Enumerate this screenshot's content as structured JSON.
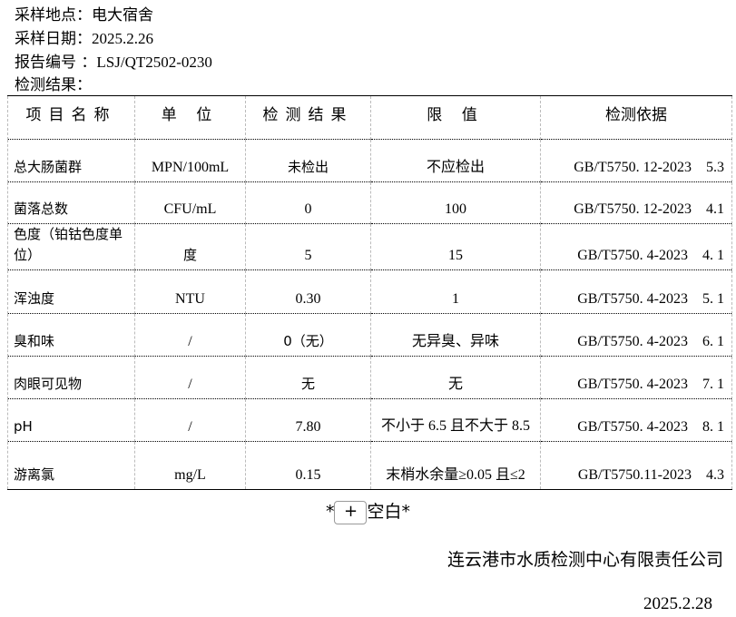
{
  "meta": {
    "location_label": "采样地点：",
    "location": "电大宿舍",
    "date_label": "采样日期：",
    "date": "2025.2.26",
    "report_label": "报告编号 ：",
    "report_no": "LSJ/QT2502-0230",
    "result_label": "检测结果："
  },
  "table": {
    "headers": [
      "项目名称",
      "单 位",
      "检测结果",
      "限 值",
      "检测依据"
    ],
    "rows": [
      {
        "name": "总大肠菌群",
        "unit": "MPN/100mL",
        "result": "未检出",
        "limit": "不应检出",
        "basis": "GB/T5750. 12-2023    5.3"
      },
      {
        "name": "菌落总数",
        "unit": "CFU/mL",
        "result": "0",
        "limit": "100",
        "basis": "GB/T5750. 12-2023    4.1"
      },
      {
        "name": "色度（铂钴色度单位）",
        "unit": "度",
        "result": "5",
        "limit": "15",
        "basis": "GB/T5750. 4-2023    4. 1"
      },
      {
        "name": "浑浊度",
        "unit": "NTU",
        "result": "0.30",
        "limit": "1",
        "basis": "GB/T5750. 4-2023    5. 1"
      },
      {
        "name": "臭和味",
        "unit": "/",
        "result": "0（无）",
        "limit": "无异臭、异味",
        "basis": "GB/T5750. 4-2023    6. 1"
      },
      {
        "name": "肉眼可见物",
        "unit": "/",
        "result": "无",
        "limit": "无",
        "basis": "GB/T5750. 4-2023    7. 1"
      },
      {
        "name": "pH",
        "unit": "/",
        "result": "7.80",
        "limit": "不小于 6.5 且不大于 8.5",
        "basis": "GB/T5750. 4-2023    8. 1"
      },
      {
        "name": "游离氯",
        "unit": "mg/L",
        "result": "0.15",
        "limit": "末梢水余量≥0.05 且≤2",
        "basis": "GB/T5750.11-2023    4.3"
      }
    ]
  },
  "footer": {
    "blank_left": "*",
    "plus": "+",
    "blank_right": "空白*",
    "org": "连云港市水质检测中心有限责任公司",
    "date": "2025.2.28"
  }
}
